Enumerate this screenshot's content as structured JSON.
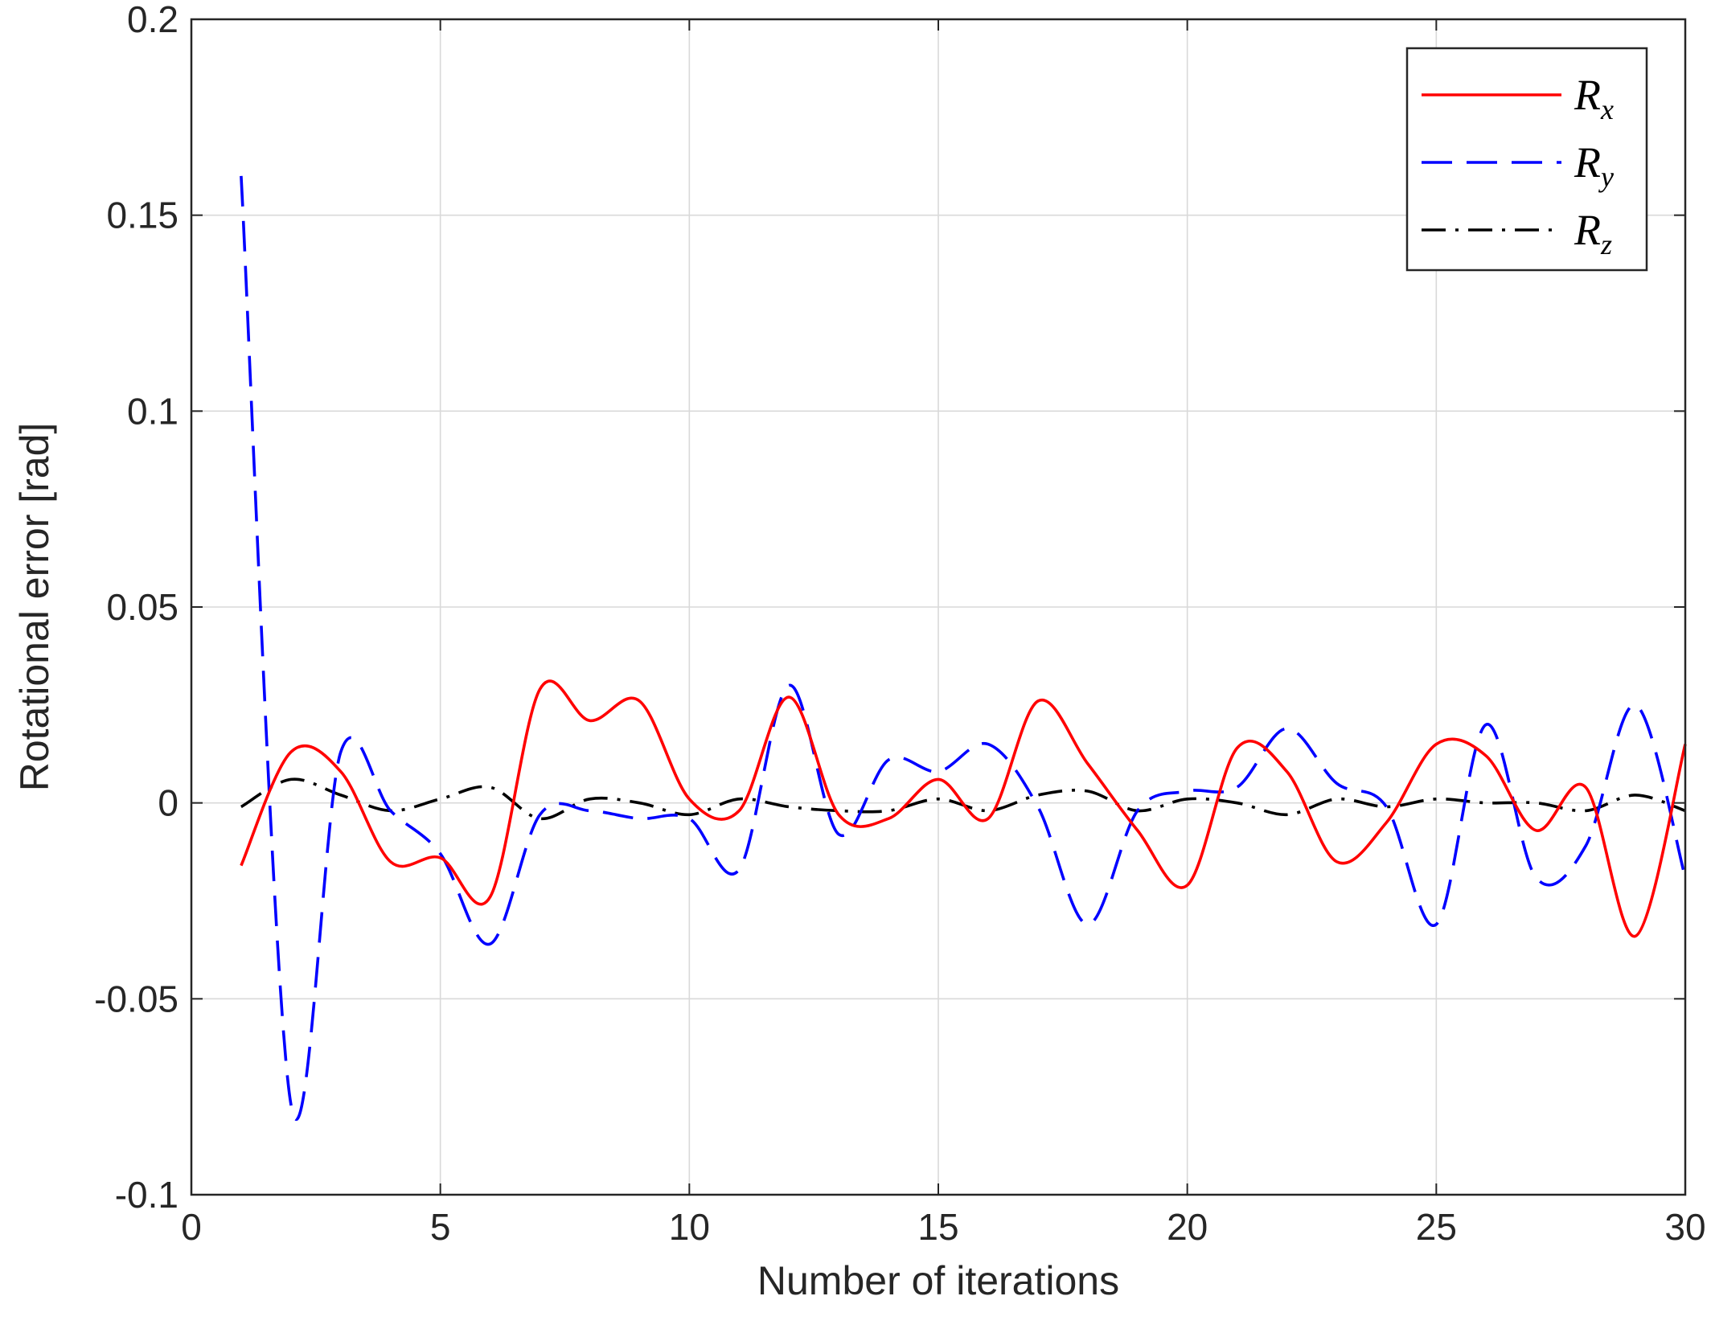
{
  "chart_data": {
    "type": "line",
    "xlabel": "Number of iterations",
    "ylabel": "Rotational error [rad]",
    "xlim": [
      0,
      30
    ],
    "ylim": [
      -0.1,
      0.2
    ],
    "xticks": [
      "0",
      "5",
      "10",
      "15",
      "20",
      "25",
      "30"
    ],
    "yticks": [
      "-0.1",
      "-0.05",
      "0",
      "0.05",
      "0.1",
      "0.15",
      "0.2"
    ],
    "grid": true,
    "legend_position": "top-right",
    "colors": {
      "Rx": "#ff0000",
      "Ry": "#0000ff",
      "Rz": "#000000"
    },
    "x": [
      1,
      2,
      3,
      4,
      5,
      6,
      7,
      8,
      9,
      10,
      11,
      12,
      13,
      14,
      15,
      16,
      17,
      18,
      19,
      20,
      21,
      22,
      23,
      24,
      25,
      26,
      27,
      28,
      29,
      30
    ],
    "series": [
      {
        "key": "Rx",
        "name": "R",
        "sub": "x",
        "style": "solid",
        "values": [
          -0.016,
          0.013,
          0.008,
          -0.015,
          -0.014,
          -0.024,
          0.029,
          0.021,
          0.026,
          0.001,
          -0.002,
          0.027,
          -0.003,
          -0.004,
          0.006,
          -0.004,
          0.026,
          0.01,
          -0.007,
          -0.021,
          0.014,
          0.008,
          -0.015,
          -0.005,
          0.015,
          0.012,
          -0.007,
          0.004,
          -0.034,
          0.015
        ]
      },
      {
        "key": "Ry",
        "name": "R",
        "sub": "y",
        "style": "dashed",
        "values": [
          0.16,
          -0.077,
          0.013,
          -0.002,
          -0.013,
          -0.036,
          -0.003,
          -0.002,
          -0.004,
          -0.004,
          -0.017,
          0.03,
          -0.008,
          0.011,
          0.008,
          0.015,
          -0.001,
          -0.031,
          -0.002,
          0.003,
          0.004,
          0.019,
          0.005,
          -0.001,
          -0.031,
          0.02,
          -0.019,
          -0.011,
          0.025,
          -0.019
        ]
      },
      {
        "key": "Rz",
        "name": "R",
        "sub": "z",
        "style": "dashdot",
        "values": [
          -0.001,
          0.006,
          0.002,
          -0.002,
          0.001,
          0.004,
          -0.004,
          0.001,
          0.0,
          -0.003,
          0.001,
          -0.001,
          -0.002,
          -0.002,
          0.001,
          -0.002,
          0.002,
          0.003,
          -0.002,
          0.001,
          0.0,
          -0.003,
          0.001,
          -0.001,
          0.001,
          0.0,
          0.0,
          -0.002,
          0.002,
          -0.002
        ]
      }
    ]
  }
}
